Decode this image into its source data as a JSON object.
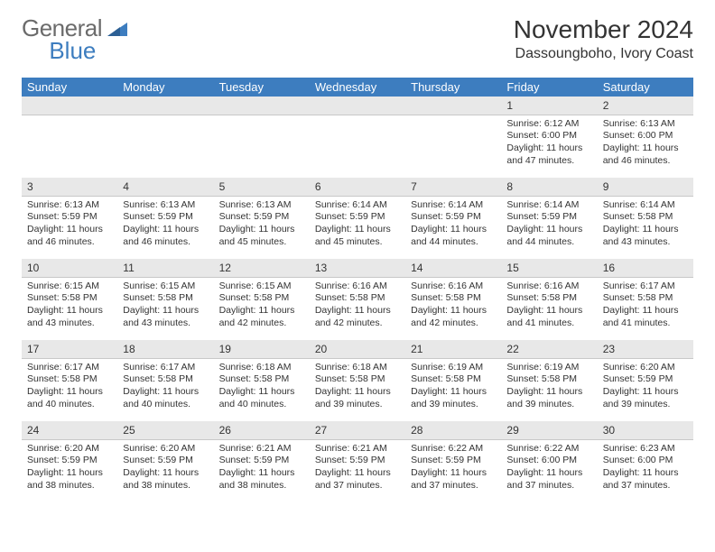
{
  "brand": {
    "part1": "General",
    "part2": "Blue"
  },
  "header": {
    "title": "November 2024",
    "location": "Dassoungboho, Ivory Coast"
  },
  "colors": {
    "header_bg": "#3d7dbf",
    "numrow_bg": "#e8e8e8"
  },
  "daynames": [
    "Sunday",
    "Monday",
    "Tuesday",
    "Wednesday",
    "Thursday",
    "Friday",
    "Saturday"
  ],
  "weeks": [
    {
      "nums": [
        "",
        "",
        "",
        "",
        "",
        "1",
        "2"
      ],
      "cells": [
        {
          "sunrise": "",
          "sunset": "",
          "daylight": ""
        },
        {
          "sunrise": "",
          "sunset": "",
          "daylight": ""
        },
        {
          "sunrise": "",
          "sunset": "",
          "daylight": ""
        },
        {
          "sunrise": "",
          "sunset": "",
          "daylight": ""
        },
        {
          "sunrise": "",
          "sunset": "",
          "daylight": ""
        },
        {
          "sunrise": "Sunrise: 6:12 AM",
          "sunset": "Sunset: 6:00 PM",
          "daylight": "Daylight: 11 hours and 47 minutes."
        },
        {
          "sunrise": "Sunrise: 6:13 AM",
          "sunset": "Sunset: 6:00 PM",
          "daylight": "Daylight: 11 hours and 46 minutes."
        }
      ]
    },
    {
      "nums": [
        "3",
        "4",
        "5",
        "6",
        "7",
        "8",
        "9"
      ],
      "cells": [
        {
          "sunrise": "Sunrise: 6:13 AM",
          "sunset": "Sunset: 5:59 PM",
          "daylight": "Daylight: 11 hours and 46 minutes."
        },
        {
          "sunrise": "Sunrise: 6:13 AM",
          "sunset": "Sunset: 5:59 PM",
          "daylight": "Daylight: 11 hours and 46 minutes."
        },
        {
          "sunrise": "Sunrise: 6:13 AM",
          "sunset": "Sunset: 5:59 PM",
          "daylight": "Daylight: 11 hours and 45 minutes."
        },
        {
          "sunrise": "Sunrise: 6:14 AM",
          "sunset": "Sunset: 5:59 PM",
          "daylight": "Daylight: 11 hours and 45 minutes."
        },
        {
          "sunrise": "Sunrise: 6:14 AM",
          "sunset": "Sunset: 5:59 PM",
          "daylight": "Daylight: 11 hours and 44 minutes."
        },
        {
          "sunrise": "Sunrise: 6:14 AM",
          "sunset": "Sunset: 5:59 PM",
          "daylight": "Daylight: 11 hours and 44 minutes."
        },
        {
          "sunrise": "Sunrise: 6:14 AM",
          "sunset": "Sunset: 5:58 PM",
          "daylight": "Daylight: 11 hours and 43 minutes."
        }
      ]
    },
    {
      "nums": [
        "10",
        "11",
        "12",
        "13",
        "14",
        "15",
        "16"
      ],
      "cells": [
        {
          "sunrise": "Sunrise: 6:15 AM",
          "sunset": "Sunset: 5:58 PM",
          "daylight": "Daylight: 11 hours and 43 minutes."
        },
        {
          "sunrise": "Sunrise: 6:15 AM",
          "sunset": "Sunset: 5:58 PM",
          "daylight": "Daylight: 11 hours and 43 minutes."
        },
        {
          "sunrise": "Sunrise: 6:15 AM",
          "sunset": "Sunset: 5:58 PM",
          "daylight": "Daylight: 11 hours and 42 minutes."
        },
        {
          "sunrise": "Sunrise: 6:16 AM",
          "sunset": "Sunset: 5:58 PM",
          "daylight": "Daylight: 11 hours and 42 minutes."
        },
        {
          "sunrise": "Sunrise: 6:16 AM",
          "sunset": "Sunset: 5:58 PM",
          "daylight": "Daylight: 11 hours and 42 minutes."
        },
        {
          "sunrise": "Sunrise: 6:16 AM",
          "sunset": "Sunset: 5:58 PM",
          "daylight": "Daylight: 11 hours and 41 minutes."
        },
        {
          "sunrise": "Sunrise: 6:17 AM",
          "sunset": "Sunset: 5:58 PM",
          "daylight": "Daylight: 11 hours and 41 minutes."
        }
      ]
    },
    {
      "nums": [
        "17",
        "18",
        "19",
        "20",
        "21",
        "22",
        "23"
      ],
      "cells": [
        {
          "sunrise": "Sunrise: 6:17 AM",
          "sunset": "Sunset: 5:58 PM",
          "daylight": "Daylight: 11 hours and 40 minutes."
        },
        {
          "sunrise": "Sunrise: 6:17 AM",
          "sunset": "Sunset: 5:58 PM",
          "daylight": "Daylight: 11 hours and 40 minutes."
        },
        {
          "sunrise": "Sunrise: 6:18 AM",
          "sunset": "Sunset: 5:58 PM",
          "daylight": "Daylight: 11 hours and 40 minutes."
        },
        {
          "sunrise": "Sunrise: 6:18 AM",
          "sunset": "Sunset: 5:58 PM",
          "daylight": "Daylight: 11 hours and 39 minutes."
        },
        {
          "sunrise": "Sunrise: 6:19 AM",
          "sunset": "Sunset: 5:58 PM",
          "daylight": "Daylight: 11 hours and 39 minutes."
        },
        {
          "sunrise": "Sunrise: 6:19 AM",
          "sunset": "Sunset: 5:58 PM",
          "daylight": "Daylight: 11 hours and 39 minutes."
        },
        {
          "sunrise": "Sunrise: 6:20 AM",
          "sunset": "Sunset: 5:59 PM",
          "daylight": "Daylight: 11 hours and 39 minutes."
        }
      ]
    },
    {
      "nums": [
        "24",
        "25",
        "26",
        "27",
        "28",
        "29",
        "30"
      ],
      "cells": [
        {
          "sunrise": "Sunrise: 6:20 AM",
          "sunset": "Sunset: 5:59 PM",
          "daylight": "Daylight: 11 hours and 38 minutes."
        },
        {
          "sunrise": "Sunrise: 6:20 AM",
          "sunset": "Sunset: 5:59 PM",
          "daylight": "Daylight: 11 hours and 38 minutes."
        },
        {
          "sunrise": "Sunrise: 6:21 AM",
          "sunset": "Sunset: 5:59 PM",
          "daylight": "Daylight: 11 hours and 38 minutes."
        },
        {
          "sunrise": "Sunrise: 6:21 AM",
          "sunset": "Sunset: 5:59 PM",
          "daylight": "Daylight: 11 hours and 37 minutes."
        },
        {
          "sunrise": "Sunrise: 6:22 AM",
          "sunset": "Sunset: 5:59 PM",
          "daylight": "Daylight: 11 hours and 37 minutes."
        },
        {
          "sunrise": "Sunrise: 6:22 AM",
          "sunset": "Sunset: 6:00 PM",
          "daylight": "Daylight: 11 hours and 37 minutes."
        },
        {
          "sunrise": "Sunrise: 6:23 AM",
          "sunset": "Sunset: 6:00 PM",
          "daylight": "Daylight: 11 hours and 37 minutes."
        }
      ]
    }
  ]
}
